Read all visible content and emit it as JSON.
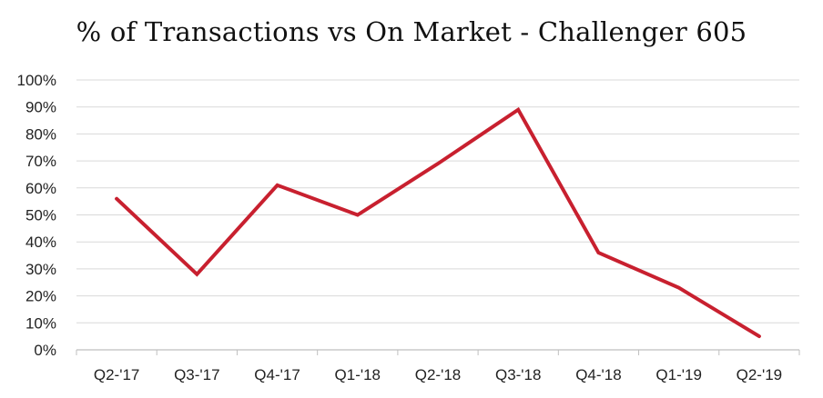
{
  "chart_data": {
    "type": "line",
    "title": "% of Transactions vs On Market - Challenger 605",
    "xlabel": "",
    "ylabel": "",
    "categories": [
      "Q2-'17",
      "Q3-'17",
      "Q4-'17",
      "Q1-'18",
      "Q2-'18",
      "Q3-'18",
      "Q4-'18",
      "Q1-'19",
      "Q2-'19"
    ],
    "series": [
      {
        "values": [
          56,
          28,
          61,
          50,
          69,
          89,
          36,
          23,
          5
        ]
      }
    ],
    "ylim": [
      0,
      100
    ],
    "yticks": [
      "0%",
      "10%",
      "20%",
      "30%",
      "40%",
      "50%",
      "60%",
      "70%",
      "80%",
      "90%",
      "100%"
    ],
    "grid": true,
    "legend": "none",
    "colors": {
      "line": "#c8202f",
      "grid": "#d9d9d9",
      "axis": "#bfbfbf"
    }
  }
}
